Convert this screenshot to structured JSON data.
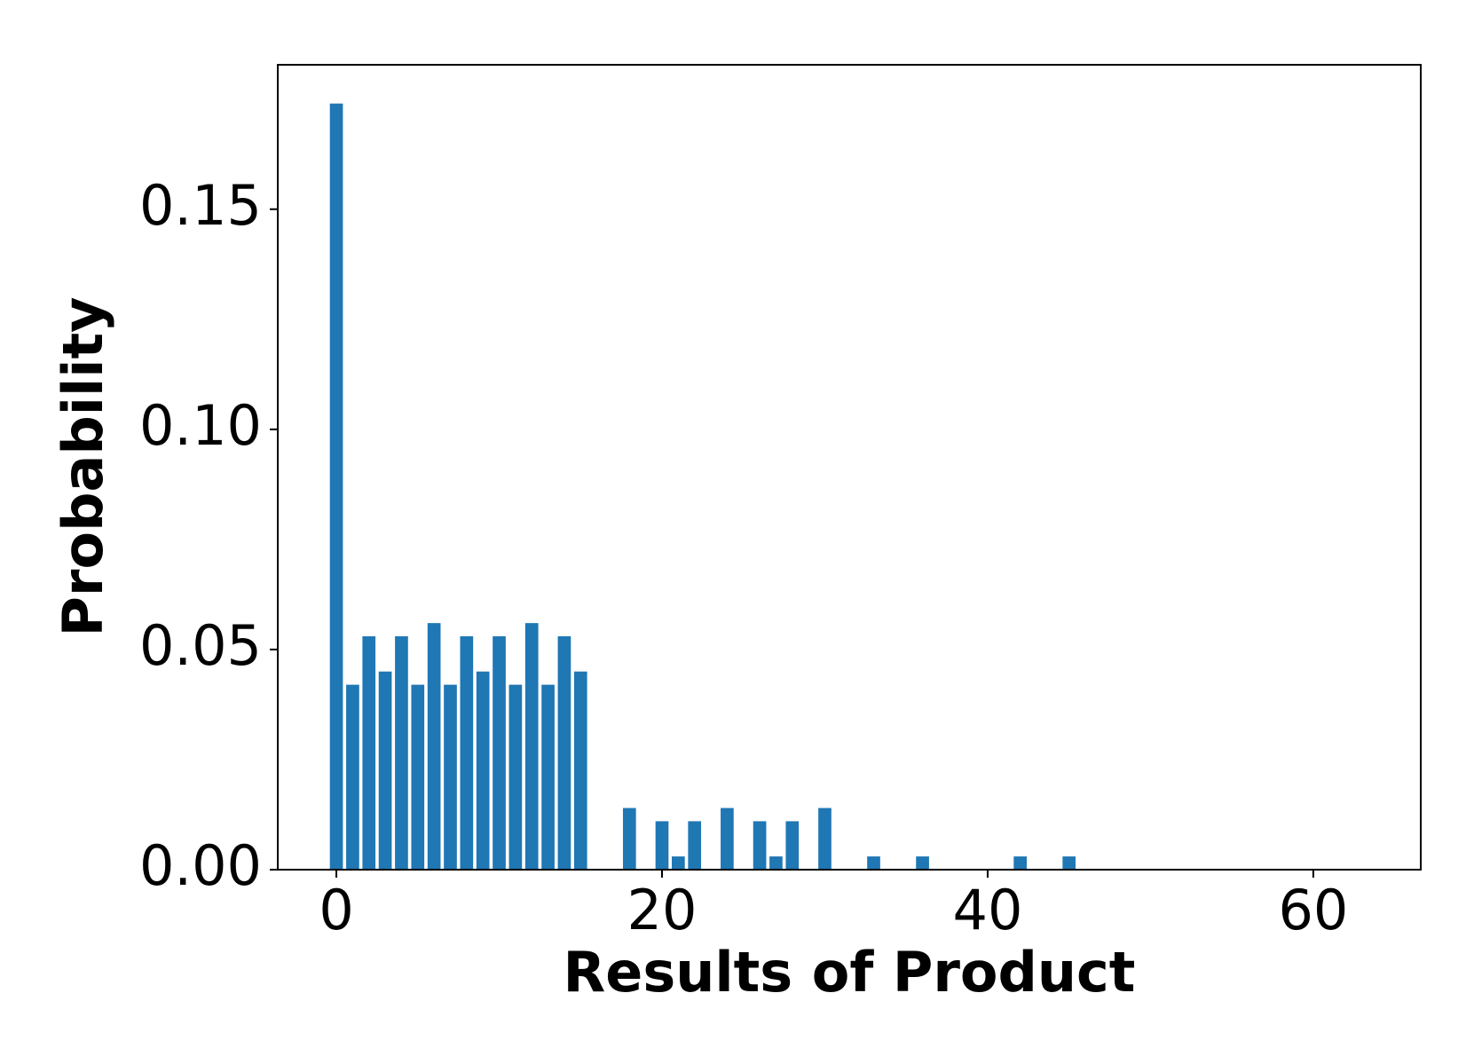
{
  "chart_data": {
    "type": "bar",
    "xlabel": "Results of Product",
    "ylabel": "Probability",
    "x": [
      0,
      1,
      2,
      3,
      4,
      5,
      6,
      7,
      8,
      9,
      10,
      11,
      12,
      13,
      14,
      15,
      18,
      20,
      21,
      22,
      24,
      26,
      27,
      28,
      30,
      33,
      36,
      42,
      45
    ],
    "values": [
      0.174,
      0.042,
      0.053,
      0.045,
      0.053,
      0.042,
      0.056,
      0.042,
      0.053,
      0.045,
      0.053,
      0.042,
      0.056,
      0.042,
      0.053,
      0.045,
      0.014,
      0.011,
      0.003,
      0.011,
      0.014,
      0.011,
      0.003,
      0.011,
      0.014,
      0.003,
      0.003,
      0.003,
      0.003
    ],
    "color": "#1f77b4",
    "xlim": [
      -3.6,
      66.6
    ],
    "ylim": [
      0,
      0.1828
    ],
    "xticks": [
      0,
      20,
      40,
      60
    ],
    "yticks": [
      {
        "value": 0,
        "label": "0.00"
      },
      {
        "value": 0.05,
        "label": "0.05"
      },
      {
        "value": 0.1,
        "label": "0.10"
      },
      {
        "value": 0.15,
        "label": "0.15"
      }
    ],
    "grid": false
  }
}
